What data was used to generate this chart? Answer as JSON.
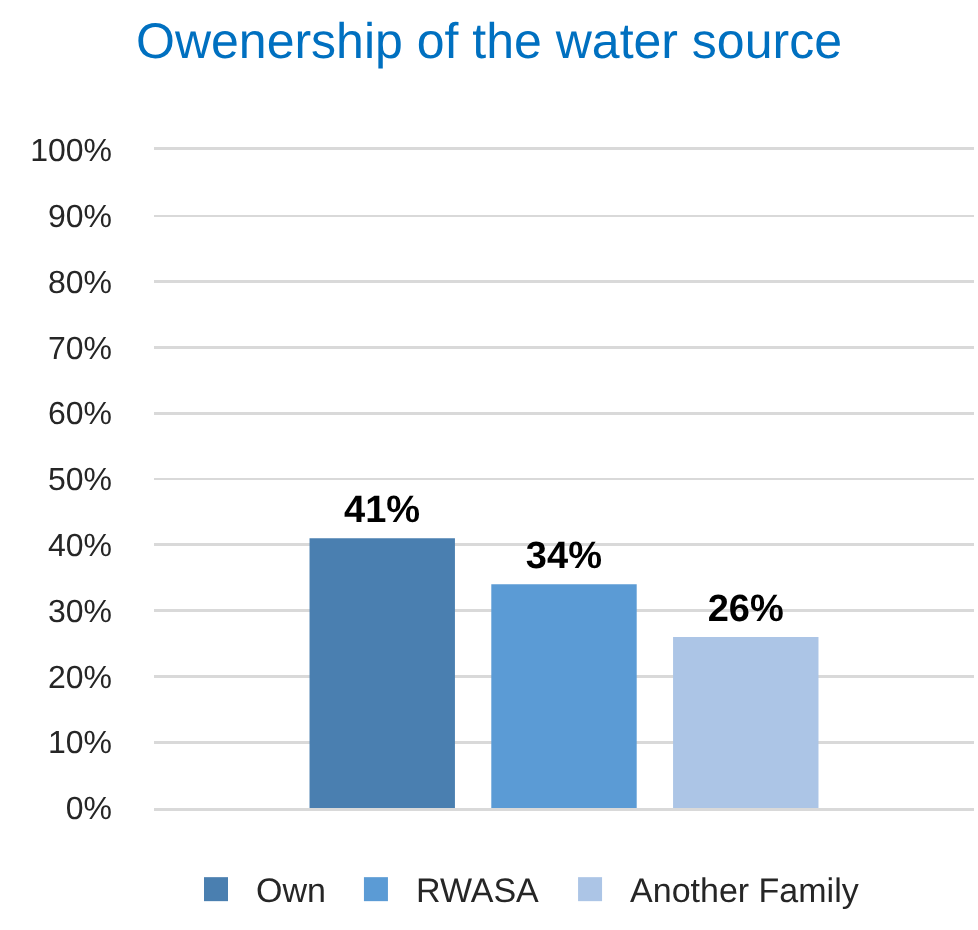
{
  "chart_data": {
    "type": "bar",
    "title": "Owenership of the water source",
    "categories": [
      null
    ],
    "series": [
      {
        "name": "Own",
        "color": "#4a7fb0",
        "values": [
          41
        ],
        "value_labels": [
          "41%"
        ]
      },
      {
        "name": "RWASA",
        "color": "#5b9bd5",
        "values": [
          34
        ],
        "value_labels": [
          "34%"
        ]
      },
      {
        "name": "Another Family",
        "color": "#acc5e6",
        "values": [
          26
        ],
        "value_labels": [
          "26%"
        ]
      }
    ],
    "ylim": [
      0,
      100
    ],
    "yticks": [
      {
        "value": 0,
        "label": "0%"
      },
      {
        "value": 10,
        "label": "10%"
      },
      {
        "value": 20,
        "label": "20%"
      },
      {
        "value": 30,
        "label": "30%"
      },
      {
        "value": 40,
        "label": "40%"
      },
      {
        "value": 50,
        "label": "50%"
      },
      {
        "value": 60,
        "label": "60%"
      },
      {
        "value": 70,
        "label": "70%"
      },
      {
        "value": 80,
        "label": "80%"
      },
      {
        "value": 90,
        "label": "90%"
      },
      {
        "value": 100,
        "label": "100%"
      }
    ],
    "grid": "y",
    "legend": "bottom",
    "tick_labels": "y"
  }
}
